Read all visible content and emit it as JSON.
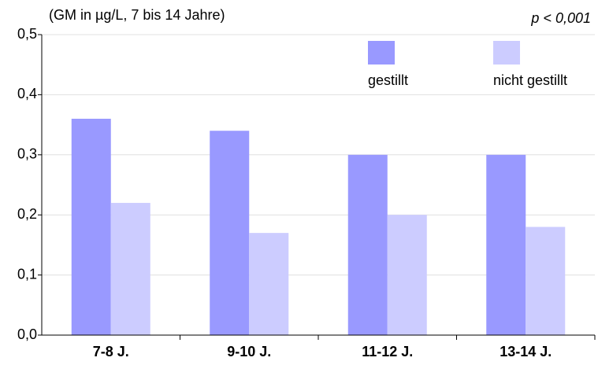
{
  "chart_data": {
    "type": "bar",
    "subtitle": "(GM in µg/L, 7 bis 14 Jahre)",
    "annotation": "p < 0,001",
    "categories": [
      "7-8 J.",
      "9-10 J.",
      "11-12 J.",
      "13-14 J."
    ],
    "series": [
      {
        "name": "gestillt",
        "color": "#9999ff",
        "values": [
          0.36,
          0.34,
          0.3,
          0.3
        ]
      },
      {
        "name": "nicht gestillt",
        "color": "#ccccff",
        "values": [
          0.22,
          0.17,
          0.2,
          0.18
        ]
      }
    ],
    "ylim": [
      0,
      0.5
    ],
    "yticks": [
      {
        "value": 0,
        "label": "0,0"
      },
      {
        "value": 0.1,
        "label": "0,1"
      },
      {
        "value": 0.2,
        "label": "0,2"
      },
      {
        "value": 0.3,
        "label": "0,3"
      },
      {
        "value": 0.4,
        "label": "0,4"
      },
      {
        "value": 0.5,
        "label": "0,5"
      }
    ],
    "grid": true,
    "legend": "top-right"
  }
}
